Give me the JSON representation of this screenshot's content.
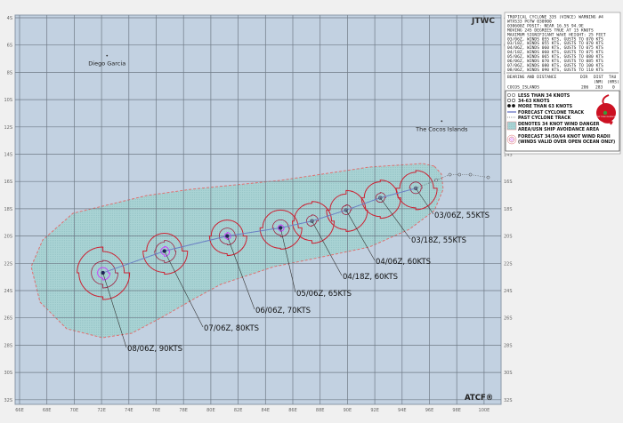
{
  "header": {
    "agency": "JTWC",
    "logo_text": "ATCF®"
  },
  "map": {
    "lon_ticks": [
      "66E",
      "68E",
      "70E",
      "72E",
      "74E",
      "76E",
      "78E",
      "80E",
      "82E",
      "84E",
      "86E",
      "88E",
      "90E",
      "92E",
      "94E",
      "96E",
      "98E",
      "100E"
    ],
    "lat_ticks": [
      "4S",
      "6S",
      "8S",
      "10S",
      "12S",
      "14S",
      "16S",
      "18S",
      "20S",
      "22S",
      "24S",
      "26S",
      "28S",
      "30S",
      "32S"
    ],
    "places": [
      {
        "name": "Diego Garcia",
        "lat": -7.3,
        "lon": 72.4
      },
      {
        "name": "The Cocos Islands",
        "lat": -12.1,
        "lon": 96.9
      }
    ],
    "colors": {
      "ocean": "#c2d1e1",
      "danger_area": "#a9d3d4",
      "danger_border": "#e07070",
      "radii_34": "#cc2233",
      "radii_50": "#a02040",
      "radii_64": "#cc33ff",
      "track": "#6b80c4"
    }
  },
  "forecast": [
    {
      "label": "03/06Z,  55KTS",
      "lat": -16.5,
      "lon": 95.0
    },
    {
      "label": "03/18Z,  55KTS",
      "lat": -17.2,
      "lon": 92.4
    },
    {
      "label": "04/06Z,  60KTS",
      "lat": -18.1,
      "lon": 89.9
    },
    {
      "label": "04/18Z,  60KTS",
      "lat": -18.9,
      "lon": 87.4
    },
    {
      "label": "05/06Z,  65KTS",
      "lat": -19.4,
      "lon": 85.1
    },
    {
      "label": "06/06Z,  70KTS",
      "lat": -20.0,
      "lon": 81.2
    },
    {
      "label": "07/06Z,  80KTS",
      "lat": -21.1,
      "lon": 76.6
    },
    {
      "label": "08/06Z,  90KTS",
      "lat": -22.7,
      "lon": 72.1
    }
  ],
  "past_track": [
    {
      "lat": -15.9,
      "lon": 96.5
    },
    {
      "lat": -15.5,
      "lon": 97.5
    },
    {
      "lat": -15.5,
      "lon": 98.2
    },
    {
      "lat": -15.5,
      "lon": 99.0
    },
    {
      "lat": -15.7,
      "lon": 100.3
    }
  ],
  "info_panel": {
    "lines": [
      "TROPICAL CYCLONE 33S (VINCE) WARNING #4",
      "WTXS33 PGTW 030900",
      "030600Z POSIT: NEAR 16.5S 94.9E",
      "MOVING 245 DEGREES TRUE AT 15 KNOTS",
      "MAXIMUM SIGNIFICANT WAVE HEIGHT: 25 FEET",
      "03/06Z, WINDS 055 KTS, GUSTS TO 070 KTS",
      "03/18Z, WINDS 055 KTS, GUSTS TO 070 KTS",
      "04/06Z, WINDS 060 KTS, GUSTS TO 075 KTS",
      "04/18Z, WINDS 060 KTS, GUSTS TO 075 KTS",
      "05/06Z, WINDS 065 KTS, GUSTS TO 080 KTS",
      "06/06Z, WINDS 070 KTS, GUSTS TO 085 KTS",
      "07/06Z, WINDS 080 KTS, GUSTS TO 100 KTS",
      "08/06Z, WINDS 090 KTS, GUSTS TO 110 KTS"
    ],
    "bearing_header": "BEARING AND DISTANCE",
    "col_dir": "DIR",
    "col_dist": "DIST",
    "col_tau": "TAU",
    "col_dist_unit": "(NM)",
    "col_tau_unit": "(HRS)",
    "bearing_rows": [
      {
        "place": "COCOS_ISLANDS",
        "dir": "206",
        "dist": "283",
        "tau": "0"
      }
    ]
  },
  "legend": {
    "items": [
      "LESS THAN 34 KNOTS",
      "34-63 KNOTS",
      "MORE THAN 63 KNOTS",
      "FORECAST CYCLONE TRACK",
      "PAST CYCLONE TRACK",
      "DENOTES 34 KNOT WIND DANGER",
      "AREA/USN SHIP AVOIDANCE AREA",
      "FORECAST 34/50/64 KNOT WIND RADII",
      "(WINDS VALID OVER OPEN OCEAN ONLY)"
    ],
    "logo_text": "JOINT TYPHOON WRNCEN"
  }
}
